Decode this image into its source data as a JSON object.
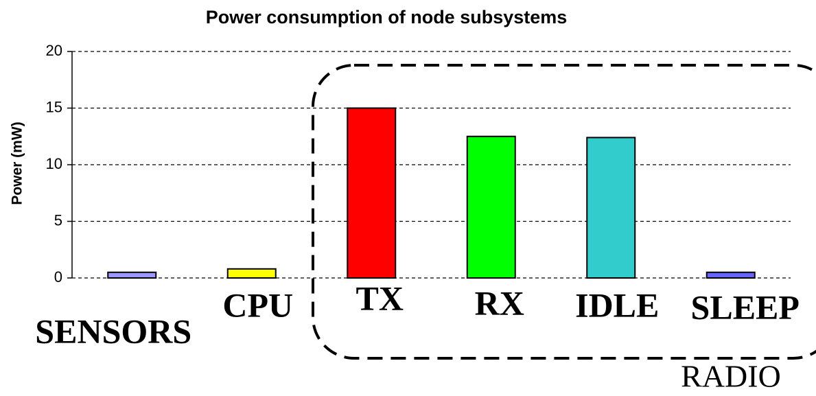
{
  "chart_data": {
    "type": "bar",
    "title": "Power consumption of node subsystems",
    "y_label": "Power (mW)",
    "categories": [
      "SENSORS",
      "CPU",
      "TX",
      "RX",
      "IDLE",
      "SLEEP"
    ],
    "values": [
      0.5,
      0.8,
      15,
      12.5,
      12.4,
      0.5
    ],
    "colors": [
      "#9999ff",
      "#ffff00",
      "#ff0000",
      "#00ff00",
      "#33cccc",
      "#6666ff"
    ],
    "annotation": "RADIO",
    "ylim": [
      0,
      20
    ],
    "yticks": [
      0,
      5,
      10,
      15,
      20
    ],
    "grid": true
  }
}
